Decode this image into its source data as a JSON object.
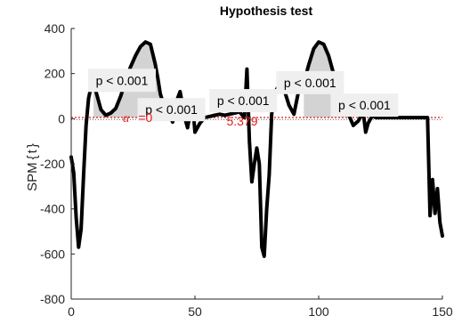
{
  "chart_data": {
    "type": "line",
    "title": "Hypothesis test",
    "ylabel": "SPM{t}",
    "ylabel_parts": [
      "SPM",
      "{",
      "t",
      "}"
    ],
    "xlim": [
      0,
      150
    ],
    "ylim": [
      -800,
      400
    ],
    "xticks": [
      0,
      50,
      100,
      150
    ],
    "yticks": [
      -800,
      -600,
      -400,
      -200,
      0,
      200,
      400
    ],
    "xtick_labels": [
      "0",
      "50",
      "100",
      "150"
    ],
    "ytick_labels": [
      "-800",
      "-600",
      "-400",
      "-200",
      "0",
      "200",
      "400"
    ],
    "grid": false,
    "threshold": 5.379,
    "threshold_label": "5.379",
    "alpha_symbol": "α",
    "alpha_label": "=0",
    "colors": {
      "curve": "#000000",
      "threshold": "#e31a1c",
      "cluster_fill": "#d3d3d3",
      "annotation_box": "#efefef"
    },
    "series": [
      {
        "x": [
          0,
          1,
          2,
          3,
          4,
          5,
          6,
          7,
          8,
          9,
          10,
          12,
          14,
          16,
          18,
          20,
          22,
          24,
          26,
          28,
          30,
          32,
          34,
          35,
          36,
          38,
          40,
          41,
          42,
          43,
          44,
          45,
          46,
          47,
          48,
          49,
          50,
          52,
          54,
          56,
          58,
          60,
          62,
          64,
          66,
          68,
          70,
          71,
          72,
          73,
          74,
          75,
          76,
          77,
          78,
          79,
          80,
          81,
          82,
          84,
          86,
          88,
          90,
          92,
          94,
          96,
          98,
          100,
          102,
          104,
          106,
          108,
          110,
          112,
          114,
          116,
          118,
          119,
          120,
          121,
          122,
          123,
          124,
          125,
          126,
          128,
          130,
          132,
          134,
          136,
          138,
          140,
          142,
          144,
          145,
          146,
          147,
          148,
          149,
          150
        ],
        "y": [
          -170,
          -240,
          -440,
          -570,
          -490,
          -250,
          -30,
          90,
          140,
          150,
          120,
          40,
          15,
          25,
          45,
          100,
          170,
          230,
          280,
          320,
          340,
          330,
          240,
          180,
          110,
          40,
          5,
          -15,
          40,
          90,
          120,
          60,
          0,
          -40,
          20,
          80,
          -60,
          -20,
          5,
          10,
          15,
          20,
          15,
          20,
          25,
          30,
          5,
          220,
          -100,
          -280,
          -200,
          -130,
          -200,
          -570,
          -610,
          -400,
          -250,
          20,
          110,
          150,
          130,
          60,
          20,
          130,
          160,
          240,
          310,
          340,
          330,
          280,
          200,
          100,
          40,
          20,
          -30,
          -10,
          30,
          -60,
          -20,
          0,
          15,
          5,
          5,
          5,
          5,
          5,
          5,
          5,
          5,
          5,
          5,
          5,
          5,
          5,
          -430,
          -270,
          -420,
          -310,
          -460,
          -520
        ]
      }
    ],
    "clusters": [
      {
        "x_range": [
          9,
          36
        ]
      },
      {
        "x_range": [
          94,
          111
        ]
      }
    ],
    "annotations": [
      {
        "text": "p < 0.001",
        "x": 20.5,
        "y": 170
      },
      {
        "text": "p < 0.001",
        "x": 40.5,
        "y": 40
      },
      {
        "text": "p < 0.001",
        "x": 69.5,
        "y": 80
      },
      {
        "text": "p < 0.001",
        "x": 96.5,
        "y": 160
      },
      {
        "text": "p < 0.001",
        "x": 118.5,
        "y": 60
      }
    ]
  }
}
